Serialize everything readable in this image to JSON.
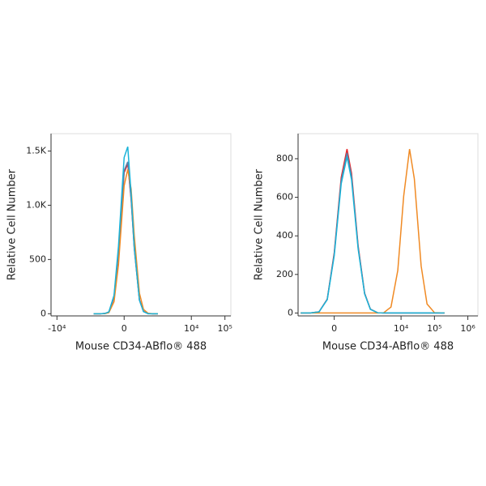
{
  "chart_data": [
    {
      "type": "line",
      "xscale": "biexponential",
      "xlabel": "Mouse CD34-ABflo® 488",
      "ylabel": "Relative Cell Number",
      "x": [
        -800,
        -500,
        -350,
        -250,
        -150,
        -80,
        0,
        50,
        100,
        150,
        250,
        350,
        500,
        700,
        1000
      ],
      "series": [
        {
          "name": "Red",
          "color": "#e8262a",
          "values": [
            0,
            0,
            2,
            15,
            150,
            560,
            1300,
            1380,
            1050,
            610,
            130,
            22,
            1,
            0,
            0
          ]
        },
        {
          "name": "Blue",
          "color": "#5a7fa8",
          "values": [
            0,
            0,
            2,
            16,
            155,
            570,
            1320,
            1400,
            1060,
            600,
            125,
            20,
            1,
            0,
            0
          ]
        },
        {
          "name": "Orange",
          "color": "#f08a24",
          "values": [
            0,
            0,
            1,
            10,
            110,
            450,
            1180,
            1330,
            1150,
            720,
            190,
            40,
            4,
            0,
            0
          ]
        },
        {
          "name": "Cyan",
          "color": "#1ab3d8",
          "values": [
            0,
            0,
            2,
            17,
            170,
            620,
            1440,
            1540,
            1100,
            620,
            125,
            20,
            0,
            0,
            0
          ]
        }
      ],
      "xlim": [
        -15000,
        150000
      ],
      "ylim": [
        -20,
        1660
      ],
      "xticks": [
        {
          "value": -10000,
          "label": "-10⁴"
        },
        0,
        {
          "value": 10000,
          "label": "10⁴"
        },
        {
          "value": 100000,
          "label": "10⁵"
        }
      ],
      "yticks": [
        0,
        500,
        {
          "value": 1000,
          "label": "1.0K"
        },
        {
          "value": 1500,
          "label": "1.5K"
        }
      ]
    },
    {
      "type": "line",
      "xscale": "biexponential",
      "xlabel": "Mouse CD34-ABflo® 488",
      "ylabel": "Relative Cell Number",
      "x": [
        -1000,
        -500,
        -250,
        -100,
        0,
        100,
        200,
        300,
        500,
        800,
        1200,
        2000,
        3000,
        5000,
        8000,
        12000,
        18000,
        25000,
        40000,
        60000,
        100000,
        200000
      ],
      "series": [
        {
          "name": "Red",
          "color": "#e8262a",
          "values": [
            0,
            0,
            6,
            72,
            312,
            703,
            850,
            724,
            349,
            103,
            20,
            1,
            0,
            0,
            0,
            0,
            0,
            0,
            0,
            0,
            0,
            0
          ]
        },
        {
          "name": "Blue",
          "color": "#5a7fa8",
          "values": [
            0,
            0,
            6,
            71,
            305,
            687,
            830,
            707,
            341,
            101,
            20,
            1,
            0,
            0,
            0,
            0,
            0,
            0,
            0,
            0,
            0,
            0
          ]
        },
        {
          "name": "Orange",
          "color": "#f08a24",
          "values": [
            0,
            0,
            0,
            0,
            0,
            0,
            0,
            0,
            0,
            0,
            0,
            0,
            1,
            31,
            221,
            606,
            850,
            696,
            244,
            47,
            2,
            0
          ]
        },
        {
          "name": "Cyan",
          "color": "#1ab3d8",
          "values": [
            0,
            0,
            6,
            69,
            297,
            670,
            810,
            690,
            333,
            99,
            19,
            1,
            0,
            0,
            0,
            0,
            0,
            0,
            0,
            0,
            0,
            0
          ]
        }
      ],
      "xlim": [
        -1200,
        2000000
      ],
      "ylim": [
        -15,
        930
      ],
      "xticks": [
        0,
        {
          "value": 10000,
          "label": "10⁴"
        },
        {
          "value": 100000,
          "label": "10⁵"
        },
        {
          "value": 1000000,
          "label": "10⁶"
        }
      ],
      "yticks": [
        0,
        200,
        400,
        600,
        800
      ]
    }
  ]
}
